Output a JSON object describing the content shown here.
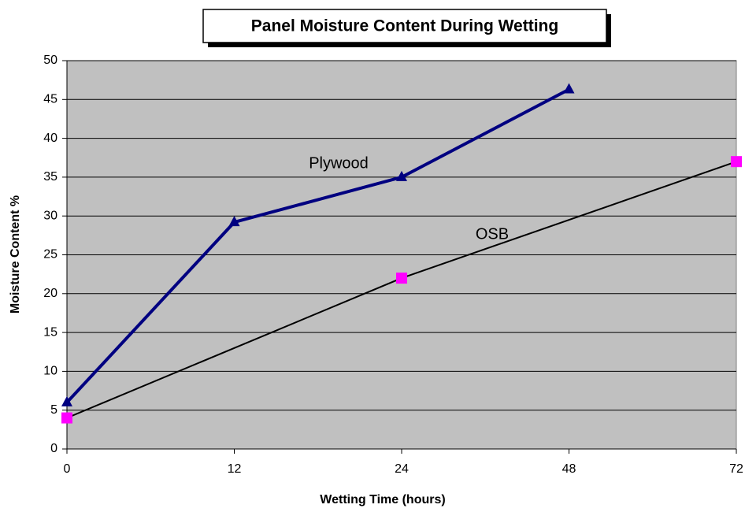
{
  "chart_data": {
    "type": "line",
    "title": "Panel Moisture Content During Wetting",
    "x_label": "Wetting Time (hours)",
    "y_label": "Moisture Content %",
    "categories": [
      "0",
      "12",
      "24",
      "48",
      "72"
    ],
    "series": [
      {
        "name": "Plywood",
        "color": "#000080",
        "marker": "triangle",
        "values": [
          6,
          29.2,
          35,
          46.3,
          null
        ]
      },
      {
        "name": "OSB",
        "color": "#000000",
        "marker_color": "#ff00ff",
        "marker": "square",
        "connect_gaps": true,
        "values": [
          4,
          null,
          22,
          null,
          37
        ]
      }
    ],
    "ylim": [
      0,
      50
    ],
    "yticks": [
      0,
      5,
      10,
      15,
      20,
      25,
      30,
      35,
      40,
      45,
      50
    ],
    "grid": true,
    "plot_background": "#c0c0c0"
  }
}
